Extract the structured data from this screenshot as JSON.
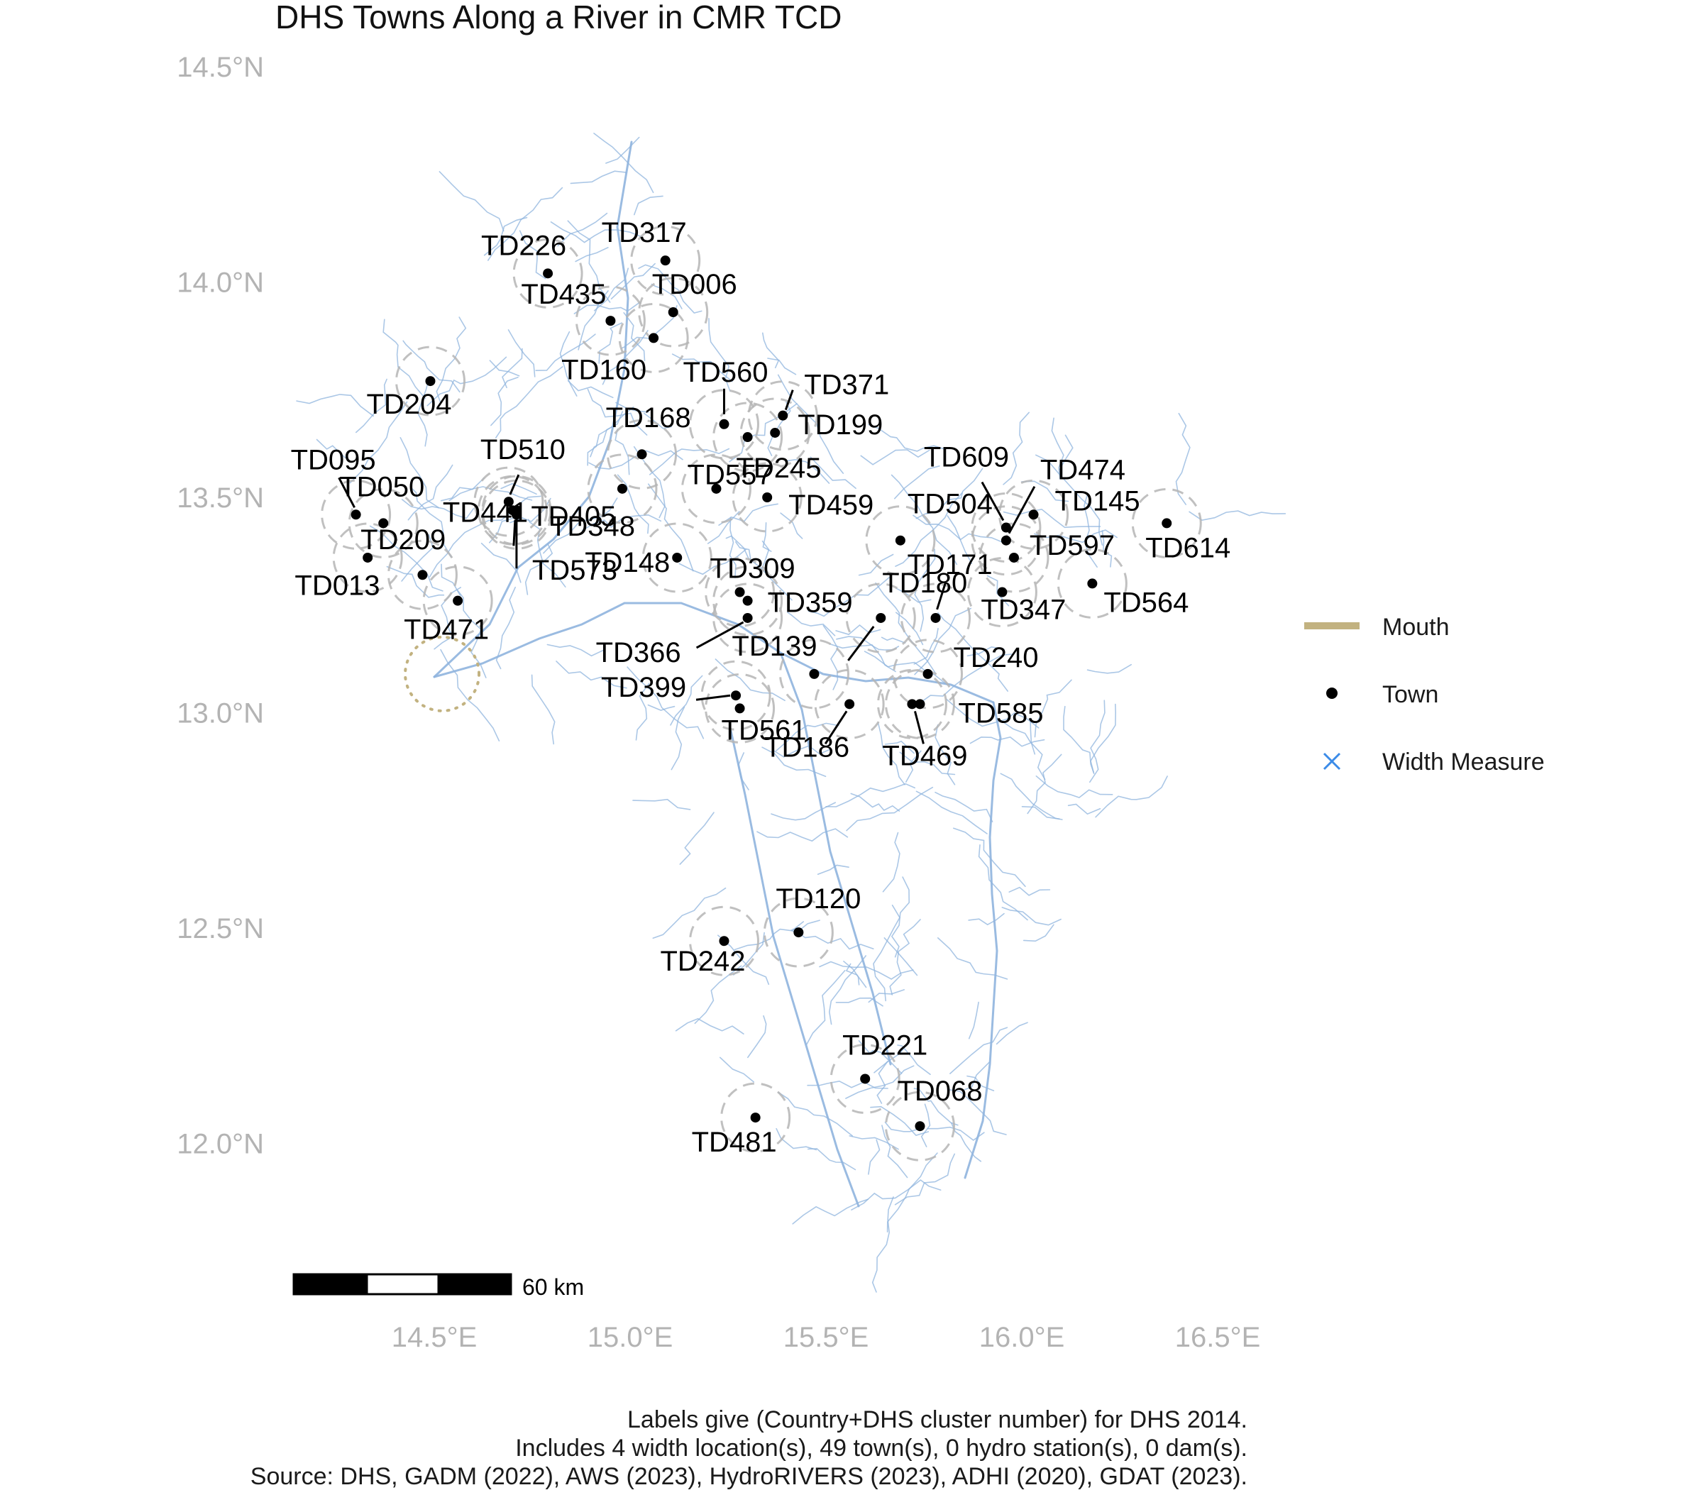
{
  "title": "DHS Towns Along a River in CMR TCD",
  "axes": {
    "y_labels": [
      {
        "lat": 14.5,
        "text": "14.5°N"
      },
      {
        "lat": 14.0,
        "text": "14.0°N"
      },
      {
        "lat": 13.5,
        "text": "13.5°N"
      },
      {
        "lat": 13.0,
        "text": "13.0°N"
      },
      {
        "lat": 12.5,
        "text": "12.5°N"
      },
      {
        "lat": 12.0,
        "text": "12.0°N"
      }
    ],
    "x_labels": [
      {
        "lon": 14.5,
        "text": "14.5°E"
      },
      {
        "lon": 15.0,
        "text": "15.0°E"
      },
      {
        "lon": 15.5,
        "text": "15.5°E"
      },
      {
        "lon": 16.0,
        "text": "16.0°E"
      },
      {
        "lon": 16.5,
        "text": "16.5°E"
      }
    ]
  },
  "colors": {
    "river": "#8fb4de",
    "buffer": "#b5b5b5",
    "mouth": "#c2b280",
    "town": "#000000",
    "width_measure": "#3b8be8"
  },
  "mouth": {
    "lon": 14.52,
    "lat": 13.09
  },
  "towns": [
    {
      "id": "TD317",
      "lon": 15.09,
      "lat": 14.05
    },
    {
      "id": "TD226",
      "lon": 14.79,
      "lat": 14.02
    },
    {
      "id": "TD006",
      "lon": 15.11,
      "lat": 13.93
    },
    {
      "id": "TD435",
      "lon": 14.95,
      "lat": 13.91
    },
    {
      "id": "TD160",
      "lon": 15.06,
      "lat": 13.87
    },
    {
      "id": "TD204",
      "lon": 14.49,
      "lat": 13.77
    },
    {
      "id": "TD371",
      "lon": 15.39,
      "lat": 13.69
    },
    {
      "id": "TD560",
      "lon": 15.24,
      "lat": 13.67
    },
    {
      "id": "TD199",
      "lon": 15.37,
      "lat": 13.65
    },
    {
      "id": "TD168",
      "lon": 15.3,
      "lat": 13.64
    },
    {
      "id": "TD557",
      "lon": 15.03,
      "lat": 13.6
    },
    {
      "id": "TD095",
      "lon": 14.3,
      "lat": 13.46
    },
    {
      "id": "TD510",
      "lon": 14.69,
      "lat": 13.49
    },
    {
      "id": "TD050",
      "lon": 14.37,
      "lat": 13.44
    },
    {
      "id": "TD405",
      "lon": 14.7,
      "lat": 13.47
    },
    {
      "id": "TD348",
      "lon": 14.98,
      "lat": 13.52
    },
    {
      "id": "TD245",
      "lon": 15.22,
      "lat": 13.52
    },
    {
      "id": "TD459",
      "lon": 15.35,
      "lat": 13.5
    },
    {
      "id": "TD609",
      "lon": 15.96,
      "lat": 13.43
    },
    {
      "id": "TD474",
      "lon": 15.96,
      "lat": 13.4
    },
    {
      "id": "TD145",
      "lon": 16.03,
      "lat": 13.46
    },
    {
      "id": "TD614",
      "lon": 16.37,
      "lat": 13.44
    },
    {
      "id": "TD504",
      "lon": 15.69,
      "lat": 13.4
    },
    {
      "id": "TD597",
      "lon": 15.98,
      "lat": 13.36
    },
    {
      "id": "TD209",
      "lon": 14.33,
      "lat": 13.36
    },
    {
      "id": "TD441",
      "lon": 14.71,
      "lat": 13.46
    },
    {
      "id": "TD148",
      "lon": 15.12,
      "lat": 13.36
    },
    {
      "id": "TD013",
      "lon": 14.47,
      "lat": 13.32
    },
    {
      "id": "TD309",
      "lon": 15.28,
      "lat": 13.28
    },
    {
      "id": "TD171",
      "lon": 15.78,
      "lat": 13.22
    },
    {
      "id": "TD347",
      "lon": 15.95,
      "lat": 13.28
    },
    {
      "id": "TD564",
      "lon": 16.18,
      "lat": 13.3
    },
    {
      "id": "TD573",
      "lon": 14.71,
      "lat": 13.47
    },
    {
      "id": "TD471",
      "lon": 14.56,
      "lat": 13.26
    },
    {
      "id": "TD359",
      "lon": 15.3,
      "lat": 13.26
    },
    {
      "id": "TD366",
      "lon": 15.3,
      "lat": 13.22
    },
    {
      "id": "TD139",
      "lon": 15.47,
      "lat": 13.09
    },
    {
      "id": "TD180",
      "lon": 15.64,
      "lat": 13.22
    },
    {
      "id": "TD240",
      "lon": 15.76,
      "lat": 13.09
    },
    {
      "id": "TD399",
      "lon": 15.27,
      "lat": 13.04
    },
    {
      "id": "TD561",
      "lon": 15.28,
      "lat": 13.01
    },
    {
      "id": "TD585",
      "lon": 15.74,
      "lat": 13.02
    },
    {
      "id": "TD469",
      "lon": 15.72,
      "lat": 13.02
    },
    {
      "id": "TD186",
      "lon": 15.56,
      "lat": 13.02
    },
    {
      "id": "TD120",
      "lon": 15.43,
      "lat": 12.49
    },
    {
      "id": "TD242",
      "lon": 15.24,
      "lat": 12.47
    },
    {
      "id": "TD221",
      "lon": 15.6,
      "lat": 12.15
    },
    {
      "id": "TD068",
      "lon": 15.74,
      "lat": 12.04
    },
    {
      "id": "TD481",
      "lon": 15.32,
      "lat": 12.06
    }
  ],
  "legend": {
    "mouth": "Mouth",
    "town": "Town",
    "width_measure": "Width Measure"
  },
  "scale_bar": {
    "label": "60 km"
  },
  "caption": {
    "line1": "Labels give (Country+DHS cluster number) for DHS 2014.",
    "line2": "Includes 4 width location(s), 49 town(s), 0 hydro station(s), 0 dam(s).",
    "line3": "Source: DHS, GADM (2022), AWS (2023), HydroRIVERS (2023), ADHI (2020), GDAT (2023)."
  }
}
